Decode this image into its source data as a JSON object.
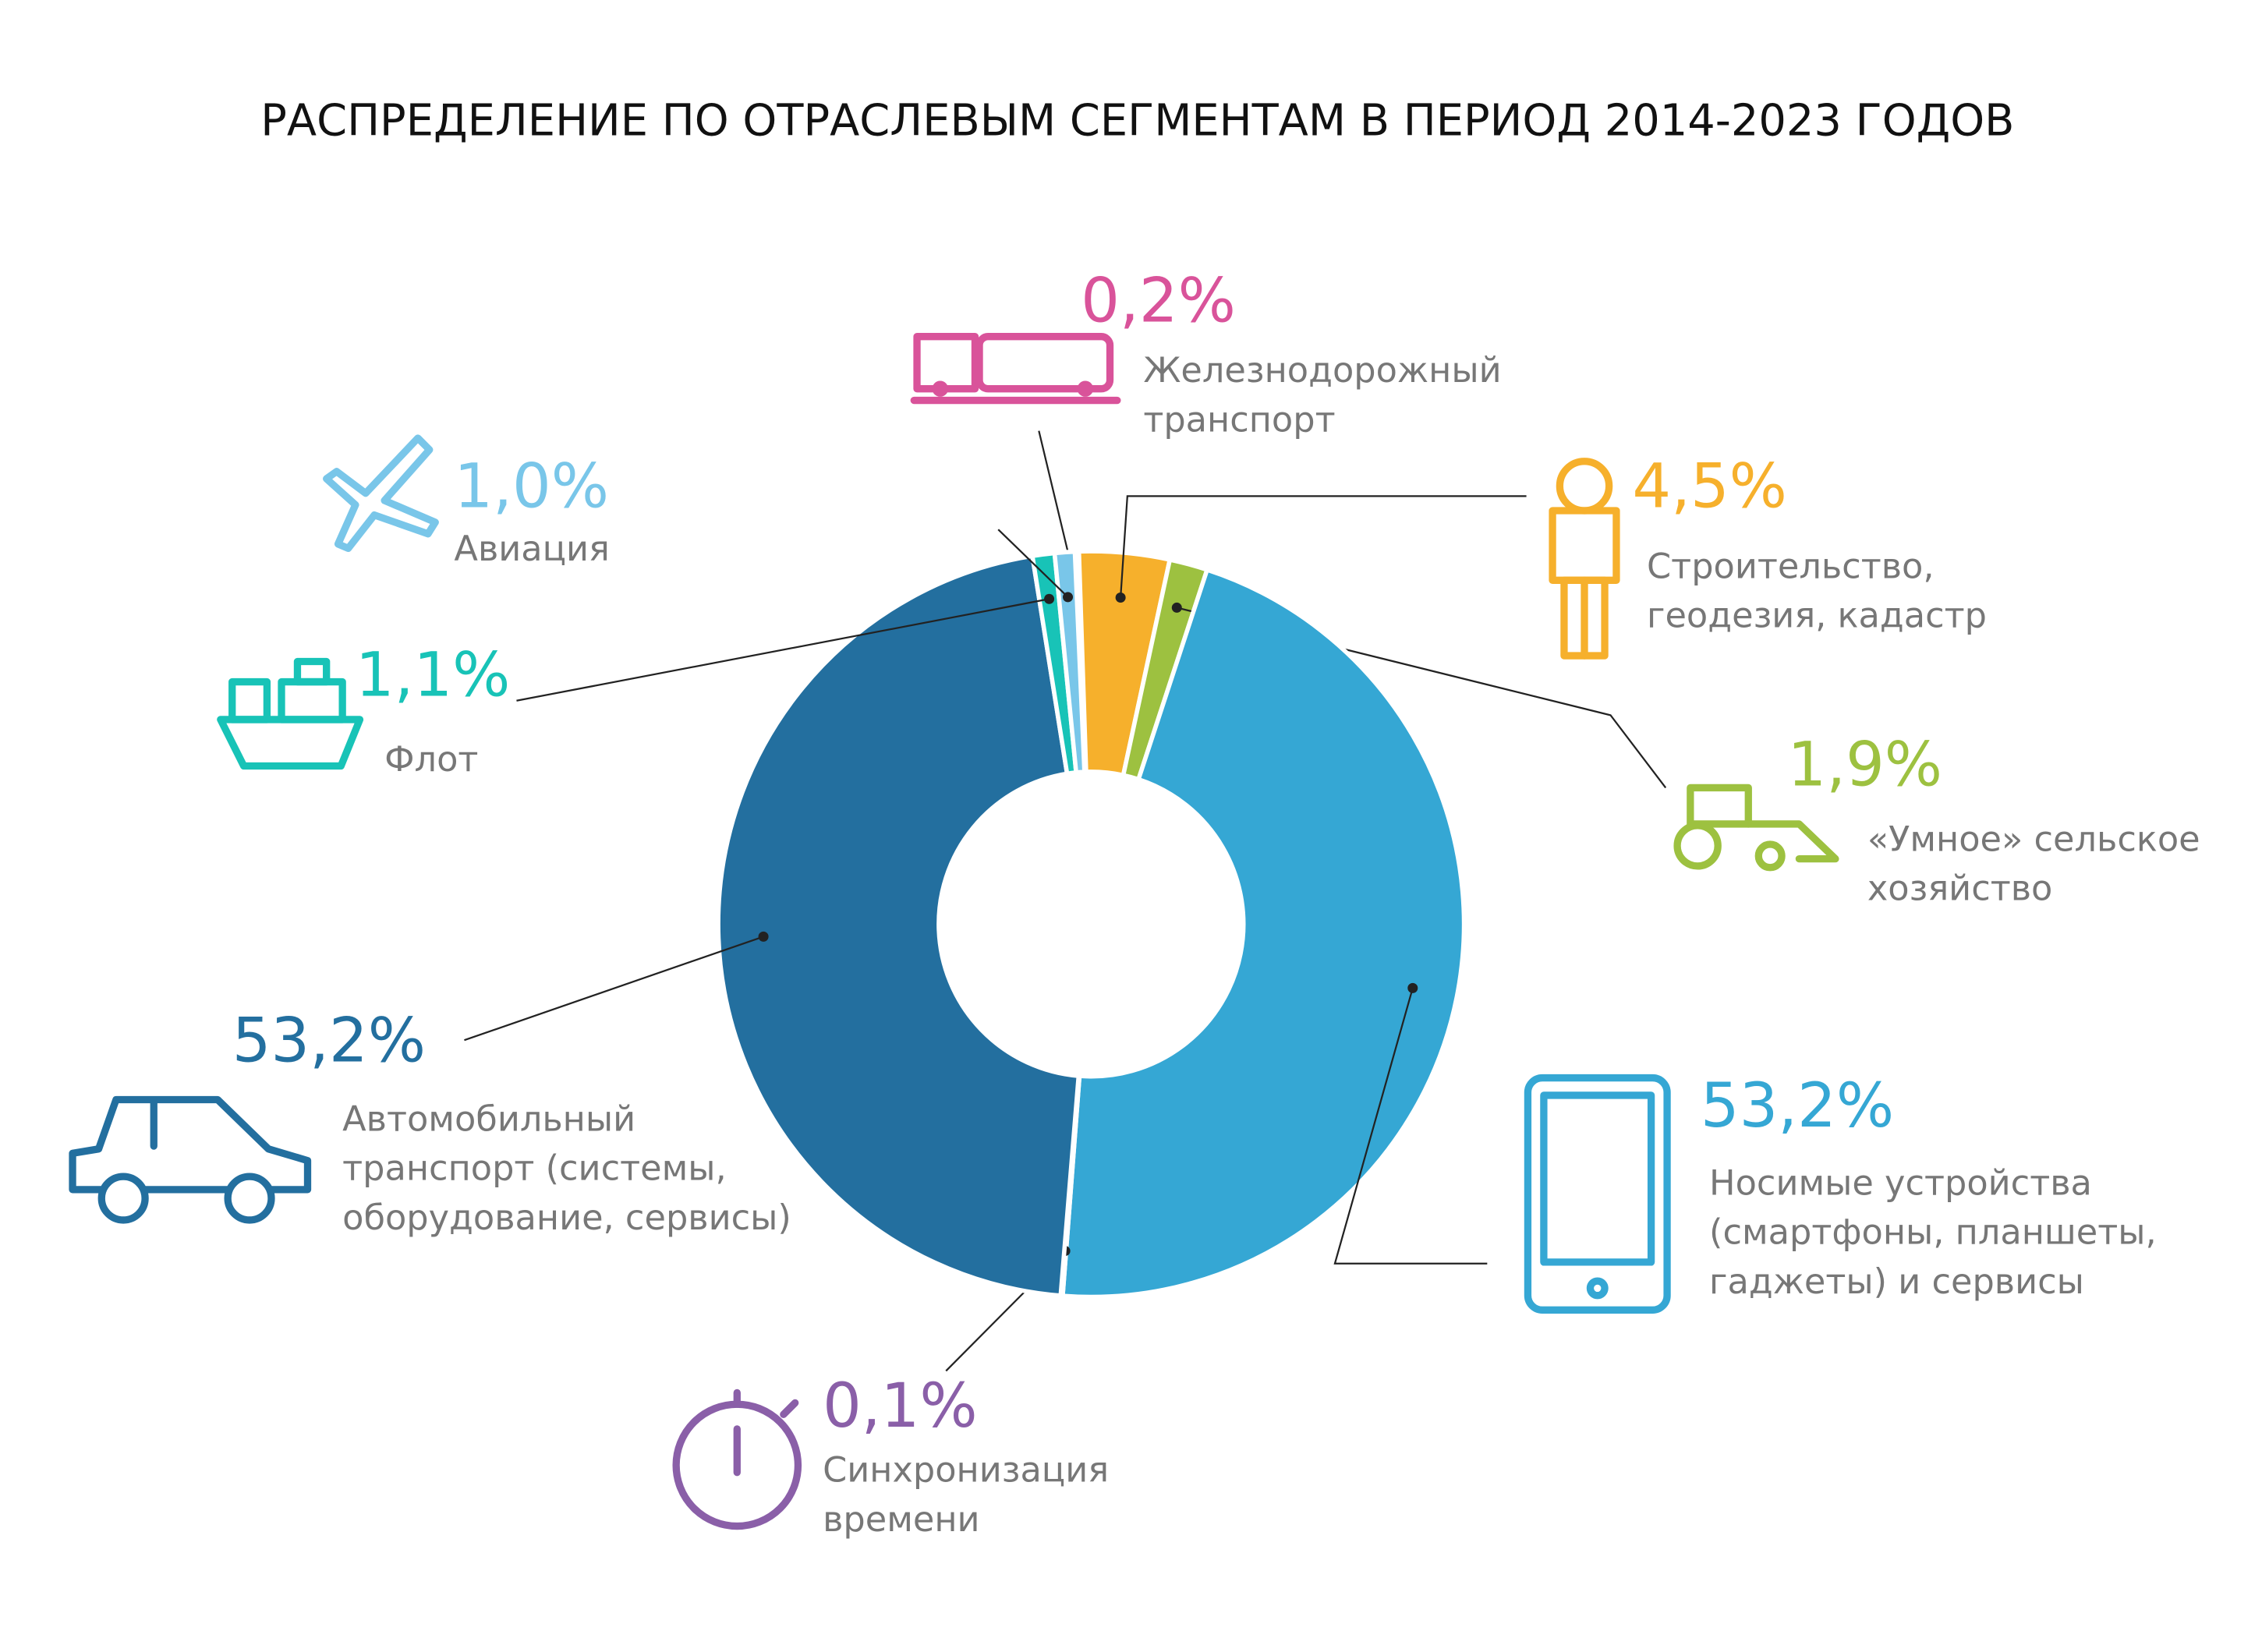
{
  "chart_data": {
    "type": "donut",
    "title": "РАСПРЕДЕЛЕНИЕ ПО ОТРАСЛЕВЫМ СЕГМЕНТАМ В ПЕРИОД 2014-2023 ГОДОВ",
    "labels": [
      [
        "Железнодорожный",
        "транспорт"
      ],
      [
        "Строительство,",
        "геодезия, кадастр"
      ],
      [
        "«Умное» сельское",
        "хозяйство"
      ],
      [
        "Носимые устройства",
        "(смартфоны, планшеты,",
        "гаджеты) и сервисы"
      ],
      [
        "Синхронизация",
        "времени"
      ],
      [
        "Автомобильный",
        "транспорт (системы,",
        "оборудование, сервисы)"
      ],
      [
        "Флот"
      ],
      [
        "Авиация"
      ]
    ],
    "values": [
      0.2,
      4.5,
      1.9,
      53.2,
      0.1,
      53.2,
      1.1,
      1.0
    ],
    "value_labels": [
      "0,2%",
      "4,5%",
      "1,9%",
      "53,2%",
      "0,1%",
      "53,2%",
      "1,1%",
      "1,0%"
    ],
    "colors": [
      "#d9539a",
      "#f6b02c",
      "#9dc140",
      "#35a7d4",
      "#8a5fa8",
      "#236f9f",
      "#18c3b7",
      "#79c6e9"
    ]
  }
}
